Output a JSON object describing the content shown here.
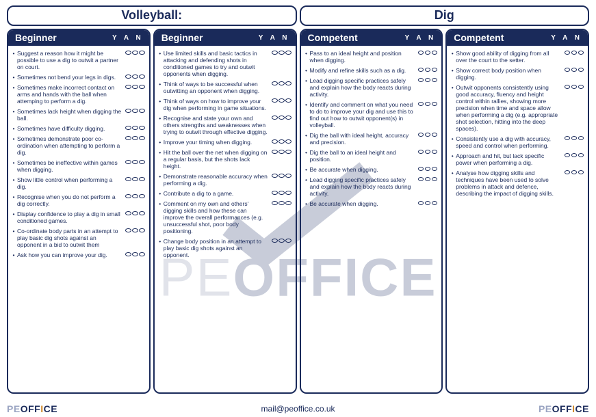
{
  "colors": {
    "primary": "#1a2a5a",
    "accent": "#d08a2a",
    "muted": "#9aa4c2",
    "bg": "#ffffff"
  },
  "header": {
    "left": "Volleyball:",
    "right": "Dig"
  },
  "yan_label": "Y  A  N",
  "columns": [
    {
      "title": "Beginner",
      "items": [
        "Suggest a reason how it might be possible to use a dig to outwit a partner on court.",
        "Sometimes not bend your legs in digs.",
        "Sometimes make incorrect contact on arms and hands with the ball when attemping to perform a dig.",
        "Sometimes lack height when digging the ball.",
        "Sometimes have difficulty digging.",
        "Sometimes demonstrate poor co-ordination when attempting to perform a dig.",
        "Sometimes be ineffective within games when digging.",
        "Show little control when performing a dig.",
        "Recognise when you do not perform a dig correctly.",
        "Display confidence to play a dig in small conditioned games.",
        "Co-ordinate body parts in an attempt to play basic dig shots against an opponent in a bid to outwit them",
        "Ask how you can improve your dig."
      ]
    },
    {
      "title": "Beginner",
      "items": [
        "Use limited skills and basic tactics in attacking and defending shots in conditioned games to try and outwit opponents when digging.",
        "Think of ways to be successful when outwitting an opponent when digging.",
        "Think of ways on how to improve your dig when performing in game situations.",
        "Recognise and state your own and others strengths and weaknesses when trying to outwit through effective digging.",
        "Improve your timing when digging.",
        "Hit the ball over the net when digging on a regular basis, but the shots lack height.",
        "Demonstrate reasonable accuracy when performing a dig.",
        "Contribute a dig to a game.",
        "Comment on my own and others' digging skills and how these can improve the overall performances (e.g. unsuccessful shot, poor body positioning.",
        "Change body position in an attempt to play basic dig shots against an opponent."
      ]
    },
    {
      "title": "Competent",
      "items": [
        "Pass to an ideal height and position when digging.",
        "Modify and refine skills such as a dig.",
        "Lead digging specific practices safely and explain how the body reacts during activity.",
        "Identify and comment on what you need to do to improve your dig and use this to find out how to outwit opponent(s) in volleyball.",
        "Dig the ball with ideal height, accuracy and precision.",
        "Dig the ball to an ideal height and position.",
        "Be accurate when digging.",
        "Lead digging specific practices safely and explain how the body reacts during activity.",
        "Be accurate when digging."
      ]
    },
    {
      "title": "Competent",
      "items": [
        "Show good ability of digging from all over the court to the setter.",
        "Show correct body position when digging.",
        "Outwit opponents consistently using good accuracy, fluency and height control within rallies, showing more precision when time and space allow when performing a dig (e.g. appropriate shot selection, hitting into the deep spaces).",
        "Consistently use a dig with accuracy, speed and control when performing.",
        "Approach and hit, but lack specific power when performing a dig.",
        "Analyse how digging skills and techniques have been used to solve problems in attack and defence, describing the impact of digging skills."
      ]
    }
  ],
  "footer": {
    "logo_pe": "PE",
    "logo_off1": "OFF",
    "logo_i": "I",
    "logo_off2": "CE",
    "email": "mail@peoffice.co.uk"
  },
  "watermark": {
    "pe": "PE",
    "office": "OFFICE"
  }
}
